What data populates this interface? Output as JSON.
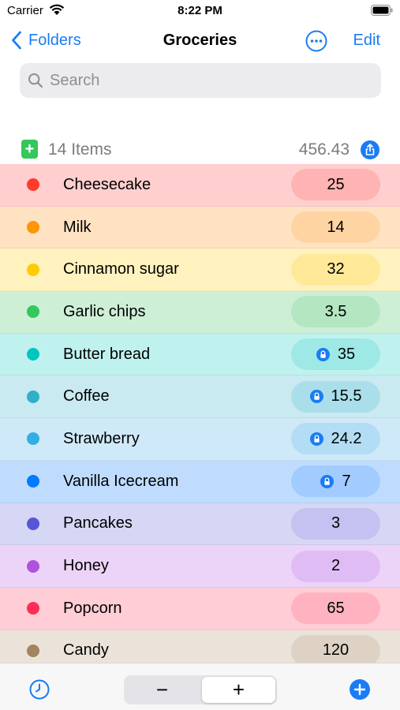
{
  "status_bar": {
    "carrier": "Carrier",
    "time": "8:22 PM"
  },
  "nav": {
    "back_label": "Folders",
    "title": "Groceries",
    "edit_label": "Edit"
  },
  "search": {
    "placeholder": "Search",
    "value": ""
  },
  "summary": {
    "count_label": "14 Items",
    "total": "456.43"
  },
  "colors": {
    "accent": "#1a7cf5",
    "add_green": "#34c759"
  },
  "items": [
    {
      "name": "Cheesecake",
      "value": "25",
      "locked": false,
      "dot": "#ff3b30",
      "bg": "#ffcfcf",
      "pill": "#ffb3b3"
    },
    {
      "name": "Milk",
      "value": "14",
      "locked": false,
      "dot": "#ff9500",
      "bg": "#ffe2c2",
      "pill": "#ffd4a3"
    },
    {
      "name": "Cinnamon sugar",
      "value": "32",
      "locked": false,
      "dot": "#ffcc00",
      "bg": "#fff2bf",
      "pill": "#ffe998"
    },
    {
      "name": "Garlic chips",
      "value": "3.5",
      "locked": false,
      "dot": "#34c759",
      "bg": "#cdefd6",
      "pill": "#b3e6c1"
    },
    {
      "name": "Butter bread",
      "value": "35",
      "locked": true,
      "dot": "#00c7be",
      "bg": "#bff2ef",
      "pill": "#9ee9e5"
    },
    {
      "name": "Coffee",
      "value": "15.5",
      "locked": true,
      "dot": "#30b0c7",
      "bg": "#c9eaf1",
      "pill": "#aadeea"
    },
    {
      "name": "Strawberry",
      "value": "24.2",
      "locked": true,
      "dot": "#32ade6",
      "bg": "#cfe9f8",
      "pill": "#b2ddf4"
    },
    {
      "name": "Vanilla Icecream",
      "value": "7",
      "locked": true,
      "dot": "#007aff",
      "bg": "#bfdcff",
      "pill": "#a2cbff"
    },
    {
      "name": "Pancakes",
      "value": "3",
      "locked": false,
      "dot": "#5856d6",
      "bg": "#d6d6f5",
      "pill": "#c3c2f0"
    },
    {
      "name": "Honey",
      "value": "2",
      "locked": false,
      "dot": "#af52de",
      "bg": "#ecd4f8",
      "pill": "#e0bcf4"
    },
    {
      "name": "Popcorn",
      "value": "65",
      "locked": false,
      "dot": "#ff2d55",
      "bg": "#ffcdd6",
      "pill": "#ffb3c1"
    },
    {
      "name": "Candy",
      "value": "120",
      "locked": false,
      "dot": "#a2845e",
      "bg": "#ebe3da",
      "pill": "#ddd2c4"
    }
  ],
  "toolbar": {
    "minus_label": "−",
    "plus_label": "+"
  }
}
